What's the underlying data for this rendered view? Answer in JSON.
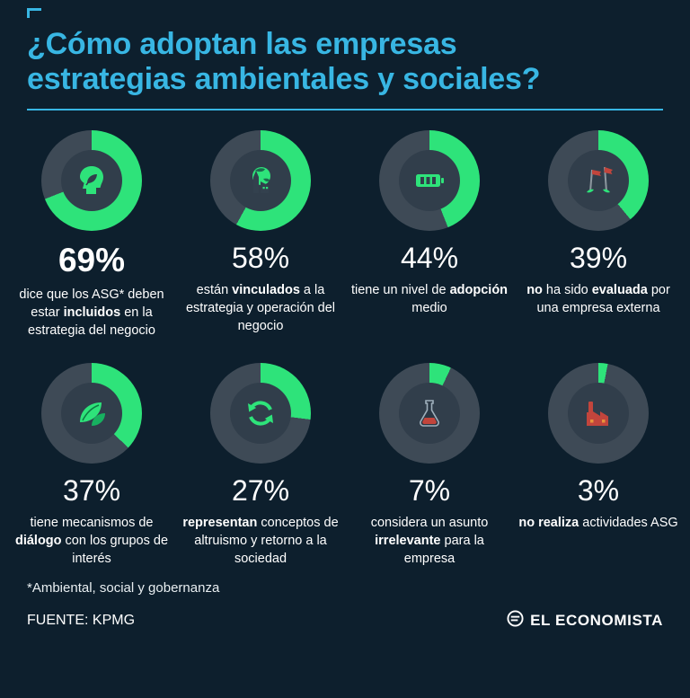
{
  "page": {
    "title_line1": "¿Cómo adoptan las empresas",
    "title_line2": "estrategias ambientales y sociales?",
    "footnote": "*Ambiental, social y gobernanza",
    "source": "FUENTE: KPMG",
    "brand": "EL ECONOMISTA"
  },
  "colors": {
    "background": "#0D1F2D",
    "title": "#38B6E3",
    "green": "#2EE37A",
    "ring": "#3E4A56",
    "hole": "#313E4B",
    "red": "#C2453C",
    "orange": "#E8923A"
  },
  "chart_data": {
    "type": "pie",
    "subtype": "donut-grid",
    "unit": "%",
    "start_angle": "top",
    "direction": "clockwise",
    "title": "¿Cómo adoptan las empresas estrategias ambientales y sociales?",
    "items": [
      {
        "value": 69,
        "emphasis": true,
        "icon": "head-leaf-icon",
        "segments": [
          {
            "t": "dice que los ASG* deben estar "
          },
          {
            "t": "incluidos",
            "b": true
          },
          {
            "t": " en la estrategia del negocio"
          }
        ]
      },
      {
        "value": 58,
        "emphasis": false,
        "icon": "globe-factory-icon",
        "segments": [
          {
            "t": "están "
          },
          {
            "t": "vinculados",
            "b": true
          },
          {
            "t": " a la estrategia y operación del negocio"
          }
        ]
      },
      {
        "value": 44,
        "emphasis": false,
        "icon": "battery-icon",
        "segments": [
          {
            "t": "tiene un nivel de "
          },
          {
            "t": "adopción",
            "b": true
          },
          {
            "t": " medio"
          }
        ]
      },
      {
        "value": 39,
        "emphasis": false,
        "icon": "flags-icon",
        "segments": [
          {
            "t": "no",
            "b": true
          },
          {
            "t": " ha sido "
          },
          {
            "t": "evaluada",
            "b": true
          },
          {
            "t": " por una empresa externa"
          }
        ]
      },
      {
        "value": 37,
        "emphasis": false,
        "icon": "leaves-icon",
        "segments": [
          {
            "t": "tiene mecanismos de "
          },
          {
            "t": "diálogo",
            "b": true
          },
          {
            "t": " con los grupos de interés"
          }
        ]
      },
      {
        "value": 27,
        "emphasis": false,
        "icon": "recycle-icon",
        "segments": [
          {
            "t": "representan",
            "b": true
          },
          {
            "t": " conceptos de altruismo y retorno a la sociedad"
          }
        ]
      },
      {
        "value": 7,
        "emphasis": false,
        "icon": "flask-icon",
        "segments": [
          {
            "t": "considera un asunto "
          },
          {
            "t": "irrelevante",
            "b": true
          },
          {
            "t": " para la empresa"
          }
        ]
      },
      {
        "value": 3,
        "emphasis": false,
        "icon": "factory-icon",
        "segments": [
          {
            "t": "no realiza",
            "b": true
          },
          {
            "t": " actividades ASG"
          }
        ]
      }
    ]
  }
}
